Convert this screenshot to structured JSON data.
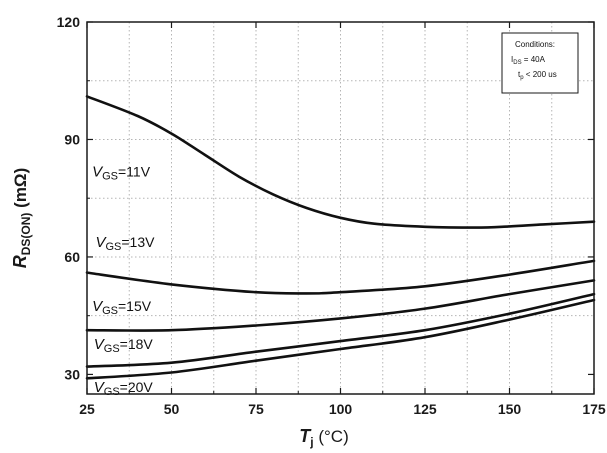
{
  "chart_data": {
    "type": "line",
    "xlabel": {
      "main": "T",
      "sub": "j",
      "unit": " (°C)"
    },
    "ylabel": {
      "main": "R",
      "sub": "DS(ON)",
      "unit": " (mΩ)"
    },
    "xlim": [
      25,
      175
    ],
    "ylim": [
      25,
      120
    ],
    "x_ticks": [
      25,
      50,
      75,
      100,
      125,
      150,
      175
    ],
    "y_ticks": [
      30,
      60,
      90,
      120
    ],
    "grid": true,
    "grid_style": "dotted",
    "conditions": {
      "title": "Conditions:",
      "line1": {
        "main": "I",
        "sub": "DS",
        "rest": " =  40A"
      },
      "line2": {
        "main": "t",
        "sub": "p",
        "rest": " < 200 us"
      }
    },
    "series": [
      {
        "name": "11V",
        "label": {
          "main": "V",
          "sub": "GS",
          "rest": "=11V"
        },
        "label_at": [
          26.5,
          80.5
        ],
        "x": [
          25,
          40,
          50,
          60,
          70,
          80,
          90,
          100,
          110,
          125,
          140,
          150,
          160,
          175
        ],
        "y": [
          101,
          96,
          91.5,
          86,
          80.5,
          76,
          72.5,
          70,
          68.5,
          67.7,
          67.5,
          67.8,
          68.3,
          69
        ]
      },
      {
        "name": "13V",
        "label": {
          "main": "V",
          "sub": "GS",
          "rest": "=13V"
        },
        "label_at": [
          27.5,
          62.5
        ],
        "x": [
          25,
          50,
          75,
          90,
          100,
          125,
          150,
          175
        ],
        "y": [
          56,
          53,
          51,
          50.7,
          51,
          52.5,
          55.5,
          59
        ]
      },
      {
        "name": "15V",
        "label": {
          "main": "V",
          "sub": "GS",
          "rest": "=15V"
        },
        "label_at": [
          26.5,
          46.2
        ],
        "x": [
          25,
          50,
          75,
          100,
          125,
          150,
          175
        ],
        "y": [
          41.3,
          41.3,
          42.5,
          44.3,
          46.8,
          50.5,
          54
        ]
      },
      {
        "name": "18V",
        "label": {
          "main": "V",
          "sub": "GS",
          "rest": "=18V"
        },
        "label_at": [
          27,
          36.5
        ],
        "x": [
          25,
          50,
          75,
          100,
          125,
          150,
          175
        ],
        "y": [
          32,
          33,
          35.8,
          38.5,
          41.3,
          45.5,
          50.5
        ]
      },
      {
        "name": "20V",
        "label": {
          "main": "V",
          "sub": "GS",
          "rest": "=20V"
        },
        "label_at": [
          27,
          25.5
        ],
        "x": [
          25,
          50,
          75,
          100,
          125,
          150,
          175
        ],
        "y": [
          29,
          30.5,
          33.5,
          36.5,
          39.5,
          44,
          49
        ]
      }
    ]
  }
}
